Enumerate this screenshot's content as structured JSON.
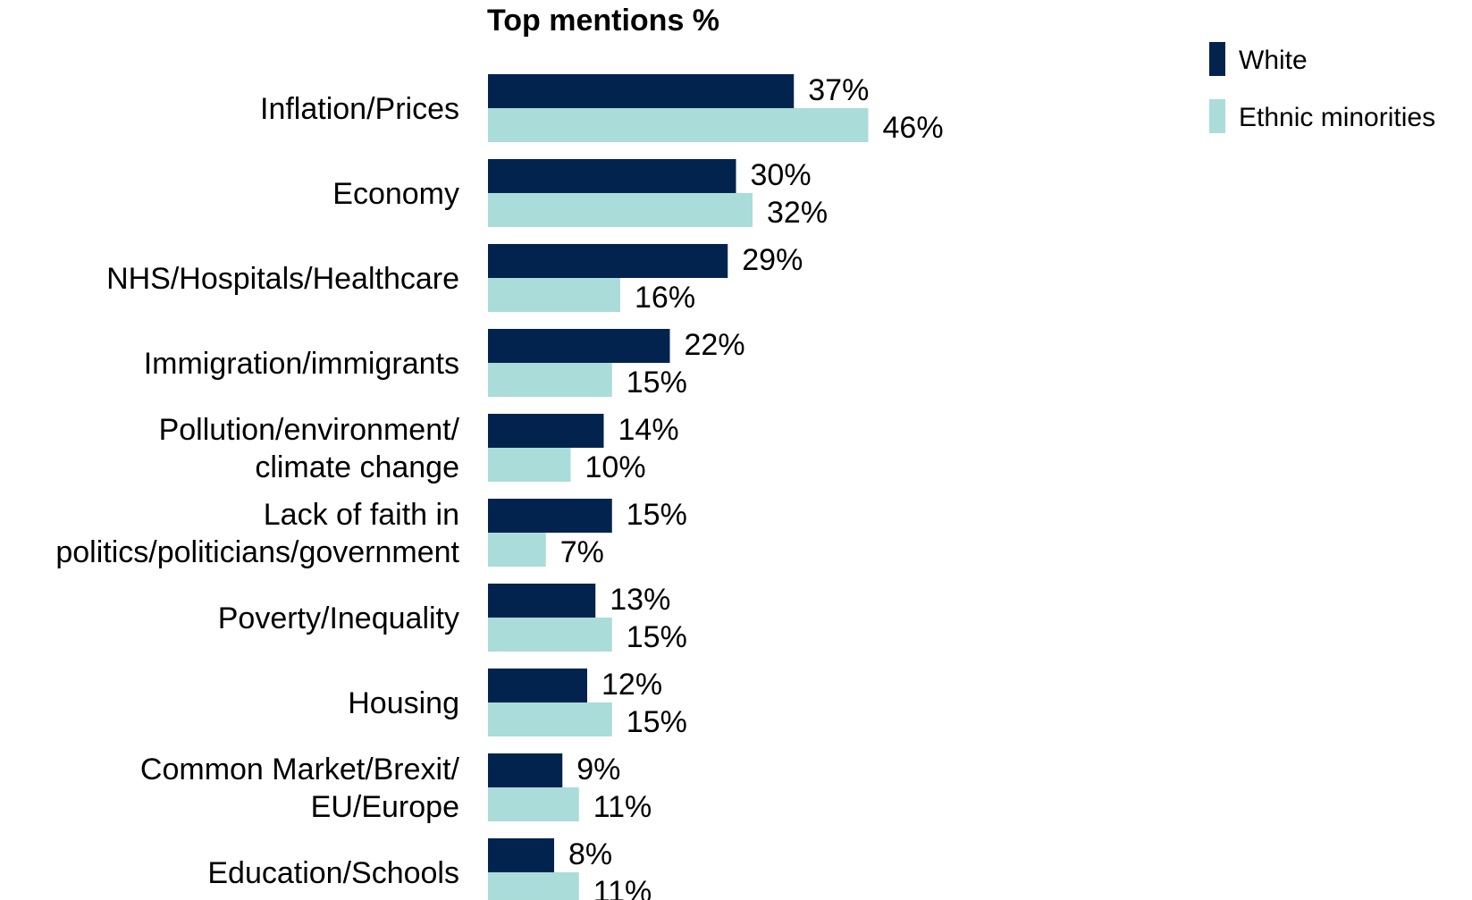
{
  "chart_data": {
    "type": "bar",
    "orientation": "horizontal",
    "title": "Top mentions %",
    "categories": [
      [
        "Inflation/Prices"
      ],
      [
        "Economy"
      ],
      [
        "NHS/Hospitals/Healthcare"
      ],
      [
        "Immigration/immigrants"
      ],
      [
        "Pollution/environment/",
        "climate change"
      ],
      [
        "Lack of faith in",
        "politics/politicians/government"
      ],
      [
        "Poverty/Inequality"
      ],
      [
        "Housing"
      ],
      [
        "Common Market/Brexit/",
        "EU/Europe"
      ],
      [
        "Education/Schools"
      ]
    ],
    "series": [
      {
        "name": "White",
        "color": "#03234f",
        "values": [
          37,
          30,
          29,
          22,
          14,
          15,
          13,
          12,
          9,
          8
        ]
      },
      {
        "name": "Ethnic minorities",
        "color": "#aadcda",
        "values": [
          46,
          32,
          16,
          15,
          10,
          7,
          15,
          15,
          11,
          11
        ]
      }
    ],
    "value_suffix": "%",
    "legend_position": "top-right",
    "grid": false
  }
}
